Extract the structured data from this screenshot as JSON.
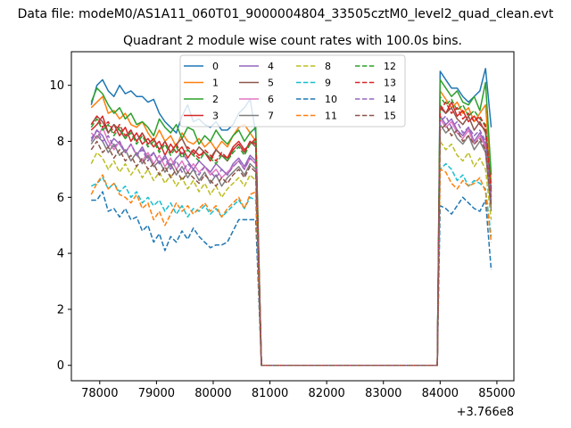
{
  "chart_data": {
    "type": "line",
    "suptitle": "Data file: modeM0/AS1A11_060T01_9000004804_33505cztM0_level2_quad_clean.evt",
    "title": "Quadrant 2 module wise count rates with 100.0s bins.",
    "xlabel": "",
    "ylabel": "",
    "x_offset_label": "+3.766e8",
    "xlim": [
      77500,
      85300
    ],
    "ylim": [
      -0.55,
      11.2
    ],
    "x_ticks": [
      78000,
      79000,
      80000,
      81000,
      82000,
      83000,
      84000,
      85000
    ],
    "x_tick_labels": [
      "78000",
      "79000",
      "80000",
      "81000",
      "82000",
      "83000",
      "84000",
      "85000"
    ],
    "y_ticks": [
      0,
      2,
      4,
      6,
      8,
      10
    ],
    "y_tick_labels": [
      "0",
      "2",
      "4",
      "6",
      "8",
      "10"
    ],
    "grid": false,
    "legend_placement": "top-center",
    "legend_columns": 4,
    "colors": [
      "#1f77b4",
      "#ff7f0e",
      "#2ca02c",
      "#d62728",
      "#9467bd",
      "#8c564b",
      "#e377c2",
      "#7f7f7f",
      "#bcbd22",
      "#17becf"
    ],
    "x_segment_1": [
      77850,
      80750
    ],
    "x_segment_2": [
      84000,
      84950
    ],
    "x_step": 100,
    "series": [
      {
        "name": "0",
        "dashed": false,
        "seg1": [
          9.3,
          10.0,
          10.2,
          9.8,
          9.6,
          10.0,
          9.7,
          9.8,
          9.6,
          9.6,
          9.4,
          9.5,
          9.0,
          8.7,
          8.5,
          8.3,
          8.9,
          9.3,
          8.7,
          8.8,
          8.6,
          8.5,
          8.7,
          8.4,
          8.4,
          8.6,
          9.0,
          9.2,
          9.5,
          8.3
        ],
        "seg2": [
          10.5,
          10.2,
          9.9,
          9.9,
          9.6,
          9.4,
          9.6,
          9.8,
          10.6,
          8.5
        ]
      },
      {
        "name": "1",
        "dashed": false,
        "seg1": [
          9.2,
          9.4,
          9.6,
          9.0,
          9.1,
          8.8,
          9.0,
          8.6,
          8.5,
          8.7,
          8.3,
          8.0,
          8.4,
          8.0,
          8.2,
          7.8,
          8.3,
          8.0,
          7.9,
          8.1,
          7.8,
          8.0,
          7.7,
          8.0,
          7.8,
          8.2,
          8.5,
          8.6,
          8.3,
          8.0
        ],
        "seg2": [
          9.8,
          9.5,
          9.2,
          9.4,
          9.0,
          9.2,
          8.7,
          9.0,
          9.3,
          6.5
        ]
      },
      {
        "name": "2",
        "dashed": false,
        "seg1": [
          9.4,
          9.9,
          9.7,
          9.3,
          9.0,
          9.2,
          8.8,
          9.0,
          8.6,
          8.7,
          8.5,
          8.2,
          8.8,
          8.5,
          8.3,
          8.6,
          8.1,
          8.5,
          8.4,
          7.9,
          8.2,
          8.0,
          8.4,
          8.1,
          7.9,
          8.2,
          8.4,
          8.0,
          8.3,
          8.5
        ],
        "seg2": [
          10.2,
          9.9,
          9.6,
          9.8,
          9.4,
          9.3,
          9.6,
          9.1,
          10.1,
          6.8
        ]
      },
      {
        "name": "3",
        "dashed": false,
        "seg1": [
          8.4,
          8.6,
          8.9,
          8.3,
          8.6,
          8.2,
          8.5,
          8.0,
          8.3,
          7.9,
          8.1,
          7.8,
          8.0,
          7.5,
          7.9,
          7.6,
          7.8,
          7.4,
          7.7,
          7.5,
          7.6,
          7.3,
          7.7,
          7.5,
          7.4,
          7.8,
          8.0,
          7.7,
          7.9,
          8.1
        ],
        "seg2": [
          9.3,
          9.0,
          9.4,
          8.9,
          9.1,
          8.7,
          8.9,
          8.6,
          8.4,
          6.2
        ]
      },
      {
        "name": "4",
        "dashed": false,
        "seg1": [
          8.0,
          8.4,
          8.2,
          7.8,
          8.1,
          7.9,
          7.6,
          7.9,
          7.5,
          7.8,
          7.4,
          7.6,
          7.2,
          7.5,
          7.1,
          7.4,
          7.6,
          7.3,
          7.0,
          7.3,
          7.1,
          6.9,
          7.2,
          7.0,
          6.8,
          7.2,
          7.4,
          7.1,
          7.5,
          7.3
        ],
        "seg2": [
          8.9,
          8.6,
          8.8,
          8.4,
          8.2,
          8.5,
          8.0,
          8.3,
          7.9,
          5.8
        ]
      },
      {
        "name": "5",
        "dashed": false,
        "seg1": [
          8.6,
          8.9,
          8.7,
          8.3,
          8.6,
          8.4,
          8.1,
          8.4,
          8.0,
          8.3,
          7.9,
          8.1,
          7.7,
          8.0,
          7.6,
          7.9,
          8.1,
          7.7,
          7.5,
          7.8,
          7.6,
          7.4,
          7.7,
          7.5,
          7.3,
          7.7,
          7.9,
          7.6,
          8.0,
          7.8
        ],
        "seg2": [
          9.2,
          9.0,
          9.2,
          8.8,
          8.6,
          8.9,
          8.4,
          8.7,
          8.3,
          6.0
        ]
      },
      {
        "name": "6",
        "dashed": false,
        "seg1": [
          8.3,
          8.1,
          8.5,
          8.0,
          7.7,
          8.0,
          7.6,
          7.9,
          7.5,
          7.3,
          7.6,
          7.2,
          7.5,
          7.1,
          7.4,
          7.0,
          7.3,
          6.9,
          7.2,
          6.9,
          7.1,
          6.8,
          7.0,
          6.7,
          6.9,
          7.1,
          7.3,
          7.0,
          7.4,
          7.2
        ],
        "seg2": [
          8.8,
          8.5,
          8.7,
          8.3,
          8.1,
          8.4,
          7.9,
          8.2,
          7.8,
          5.6
        ]
      },
      {
        "name": "7",
        "dashed": false,
        "seg1": [
          7.9,
          8.2,
          8.0,
          7.6,
          7.9,
          7.5,
          7.7,
          7.3,
          7.6,
          7.2,
          7.5,
          7.1,
          7.3,
          6.9,
          7.2,
          6.8,
          7.1,
          6.7,
          7.0,
          6.6,
          6.9,
          6.5,
          6.8,
          6.4,
          6.7,
          6.9,
          7.1,
          6.8,
          7.2,
          7.0
        ],
        "seg2": [
          8.6,
          8.3,
          8.5,
          8.1,
          7.9,
          8.2,
          7.7,
          8.0,
          7.6,
          5.5
        ]
      },
      {
        "name": "8",
        "dashed": true,
        "seg1": [
          7.2,
          7.6,
          7.4,
          7.0,
          7.3,
          6.9,
          7.2,
          6.8,
          7.1,
          6.7,
          7.0,
          6.6,
          6.9,
          6.5,
          6.8,
          6.4,
          6.7,
          6.3,
          6.6,
          6.2,
          6.5,
          6.1,
          6.4,
          6.0,
          6.3,
          6.5,
          6.7,
          6.4,
          6.8,
          6.6
        ],
        "seg2": [
          8.0,
          7.7,
          7.9,
          7.5,
          7.3,
          7.6,
          7.1,
          7.4,
          7.0,
          5.2
        ]
      },
      {
        "name": "9",
        "dashed": true,
        "seg1": [
          6.4,
          6.5,
          6.7,
          6.3,
          6.5,
          6.2,
          6.4,
          6.0,
          6.2,
          5.8,
          6.0,
          5.7,
          5.9,
          5.5,
          5.8,
          5.4,
          5.7,
          5.3,
          5.6,
          5.5,
          5.7,
          5.4,
          5.6,
          5.3,
          5.5,
          5.7,
          5.9,
          5.6,
          6.0,
          5.9
        ],
        "seg2": [
          7.0,
          7.2,
          7.0,
          6.6,
          6.8,
          6.4,
          6.6,
          6.5,
          6.3,
          4.6
        ]
      },
      {
        "name": "10",
        "dashed": true,
        "seg1": [
          5.9,
          5.9,
          6.2,
          5.5,
          5.6,
          5.3,
          5.6,
          5.2,
          5.3,
          4.8,
          5.0,
          4.4,
          4.7,
          4.1,
          4.6,
          4.4,
          4.8,
          4.5,
          4.9,
          4.6,
          4.4,
          4.2,
          4.3,
          4.3,
          4.4,
          4.8,
          5.2,
          5.2,
          5.2,
          5.2
        ],
        "seg2": [
          5.7,
          5.6,
          5.4,
          5.7,
          6.0,
          5.8,
          5.6,
          5.5,
          5.9,
          3.4
        ]
      },
      {
        "name": "11",
        "dashed": true,
        "seg1": [
          6.1,
          6.5,
          6.8,
          6.3,
          6.5,
          6.1,
          6.0,
          5.8,
          6.1,
          5.6,
          5.8,
          5.2,
          5.5,
          5.0,
          5.4,
          5.8,
          5.5,
          5.7,
          5.4,
          5.6,
          5.8,
          5.5,
          5.7,
          5.3,
          5.6,
          5.8,
          6.0,
          5.6,
          6.1,
          6.2
        ],
        "seg2": [
          7.0,
          6.9,
          6.5,
          6.3,
          6.6,
          6.4,
          6.5,
          6.7,
          6.2,
          4.4
        ]
      },
      {
        "name": "12",
        "dashed": true,
        "seg1": [
          8.5,
          8.8,
          8.4,
          8.6,
          8.2,
          8.5,
          8.1,
          8.3,
          7.9,
          8.2,
          7.8,
          8.0,
          7.6,
          7.9,
          7.5,
          7.8,
          7.4,
          7.7,
          7.5,
          7.3,
          7.6,
          7.4,
          7.2,
          7.5,
          7.3,
          7.6,
          7.8,
          7.5,
          7.9,
          8.0
        ],
        "seg2": [
          9.6,
          9.3,
          9.5,
          9.1,
          9.3,
          8.9,
          9.1,
          8.8,
          8.6,
          6.4
        ]
      },
      {
        "name": "13",
        "dashed": true,
        "seg1": [
          8.6,
          8.9,
          8.5,
          8.7,
          8.3,
          8.6,
          8.2,
          8.4,
          8.0,
          8.3,
          7.9,
          8.1,
          7.7,
          8.0,
          7.6,
          7.9,
          7.5,
          7.8,
          7.6,
          7.4,
          7.7,
          7.5,
          7.3,
          7.6,
          7.4,
          7.7,
          7.9,
          7.6,
          8.0,
          7.9
        ],
        "seg2": [
          9.1,
          9.4,
          9.0,
          9.2,
          8.8,
          9.0,
          8.7,
          8.9,
          8.5,
          6.3
        ]
      },
      {
        "name": "14",
        "dashed": true,
        "seg1": [
          8.1,
          8.4,
          8.0,
          8.2,
          7.8,
          8.0,
          7.6,
          7.9,
          7.5,
          7.7,
          7.3,
          7.6,
          7.2,
          7.4,
          7.0,
          7.3,
          6.9,
          7.2,
          7.0,
          6.8,
          7.1,
          6.9,
          6.7,
          7.0,
          6.8,
          7.1,
          7.3,
          7.0,
          7.4,
          7.2
        ],
        "seg2": [
          8.7,
          8.9,
          8.5,
          8.7,
          8.3,
          8.5,
          8.2,
          8.4,
          8.0,
          5.9
        ]
      },
      {
        "name": "15",
        "dashed": true,
        "seg1": [
          7.7,
          8.0,
          7.6,
          7.8,
          7.4,
          7.7,
          7.3,
          7.5,
          7.1,
          7.4,
          7.0,
          7.2,
          6.8,
          7.1,
          6.7,
          7.0,
          6.6,
          6.9,
          6.7,
          6.5,
          6.8,
          6.6,
          6.4,
          6.7,
          6.5,
          6.8,
          7.0,
          6.7,
          7.1,
          6.9
        ],
        "seg2": [
          8.4,
          8.6,
          8.2,
          8.4,
          8.0,
          8.2,
          7.9,
          8.1,
          7.7,
          5.7
        ]
      }
    ]
  }
}
